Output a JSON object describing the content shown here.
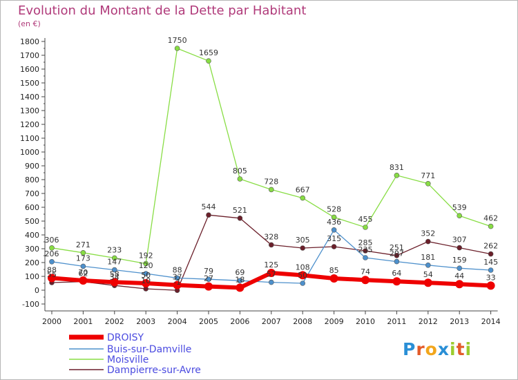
{
  "chart_data": {
    "type": "line",
    "title": "Evolution du Montant de la Dette par Habitant",
    "unit": "(en €)",
    "x": [
      2000,
      2001,
      2002,
      2003,
      2004,
      2005,
      2006,
      2007,
      2008,
      2009,
      2010,
      2011,
      2012,
      2013,
      2014
    ],
    "ylim": [
      -100,
      1800
    ],
    "yticks": [
      -100,
      0,
      100,
      200,
      300,
      400,
      500,
      600,
      700,
      800,
      900,
      1000,
      1100,
      1200,
      1300,
      1400,
      1500,
      1600,
      1700,
      1800
    ],
    "grid": false,
    "legend_position": "bottom-left",
    "series": [
      {
        "name": "Moisville",
        "color": "#88dd44",
        "values": [
          306,
          271,
          233,
          192,
          1750,
          1659,
          805,
          728,
          667,
          528,
          455,
          831,
          771,
          539,
          462
        ]
      },
      {
        "name": "Dampierre-sur-Avre",
        "color": "#6b1f2a",
        "values": [
          55,
          62,
          34,
          10,
          -1,
          544,
          521,
          328,
          305,
          315,
          285,
          251,
          352,
          307,
          262
        ]
      },
      {
        "name": "Buis-sur-Damville",
        "color": "#4d90cc",
        "values": [
          206,
          173,
          147,
          120,
          88,
          79,
          69,
          57,
          50,
          436,
          235,
          207,
          181,
          159,
          145
        ]
      },
      {
        "name": "DROISY",
        "color": "#ee0000",
        "values": [
          88,
          70,
          58,
          50,
          37,
          27,
          18,
          125,
          108,
          85,
          74,
          64,
          54,
          44,
          33
        ]
      }
    ]
  },
  "logo_text": "Proxiti"
}
